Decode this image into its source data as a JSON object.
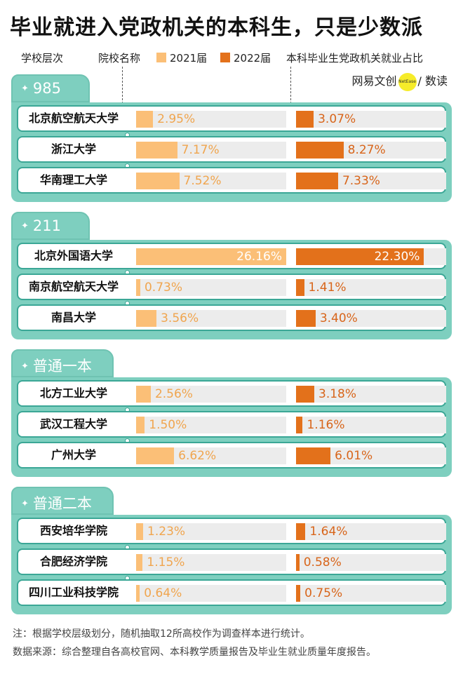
{
  "title": "毕业就进入党政机关的本科生，只是少数派",
  "legend": {
    "level_label": "学校层次",
    "name_label": "院校名称",
    "series_2021": "2021届",
    "series_2022": "2022届",
    "metric_label": "本科毕业生党政机关就业占比"
  },
  "colors": {
    "s2021": "#fbbf77",
    "s2022": "#e3711b",
    "panel": "#7ecfbf",
    "border": "#3ba796"
  },
  "logo": {
    "left": "网易",
    "mid": "文创",
    "badge": "NetEase",
    "right": "/ 数读"
  },
  "chart_data": {
    "type": "bar",
    "unit": "%",
    "series": [
      {
        "name": "2021届",
        "color": "#fbbf77"
      },
      {
        "name": "2022届",
        "color": "#e3711b"
      }
    ],
    "groups": [
      {
        "name": "985",
        "schools": [
          {
            "name": "北京航空航天大学",
            "v2021": 2.95,
            "v2022": 3.07
          },
          {
            "name": "浙江大学",
            "v2021": 7.17,
            "v2022": 8.27
          },
          {
            "name": "华南理工大学",
            "v2021": 7.52,
            "v2022": 7.33
          }
        ]
      },
      {
        "name": "211",
        "schools": [
          {
            "name": "北京外国语大学",
            "v2021": 26.16,
            "v2022": 22.3
          },
          {
            "name": "南京航空航天大学",
            "v2021": 0.73,
            "v2022": 1.41
          },
          {
            "name": "南昌大学",
            "v2021": 3.56,
            "v2022": 3.4
          }
        ]
      },
      {
        "name": "普通一本",
        "schools": [
          {
            "name": "北方工业大学",
            "v2021": 2.56,
            "v2022": 3.18
          },
          {
            "name": "武汉工程大学",
            "v2021": 1.5,
            "v2022": 1.16
          },
          {
            "name": "广州大学",
            "v2021": 6.62,
            "v2022": 6.01
          }
        ]
      },
      {
        "name": "普通二本",
        "schools": [
          {
            "name": "西安培华学院",
            "v2021": 1.23,
            "v2022": 1.64
          },
          {
            "name": "合肥经济学院",
            "v2021": 1.15,
            "v2022": 0.58
          },
          {
            "name": "四川工业科技学院",
            "v2021": 0.64,
            "v2022": 0.75
          }
        ]
      }
    ]
  },
  "footnote": "注：根据学校层级划分，随机抽取12所高校作为调查样本进行统计。",
  "source": "数据来源：综合整理自各高校官网、本科教学质量报告及毕业生就业质量年度报告。"
}
